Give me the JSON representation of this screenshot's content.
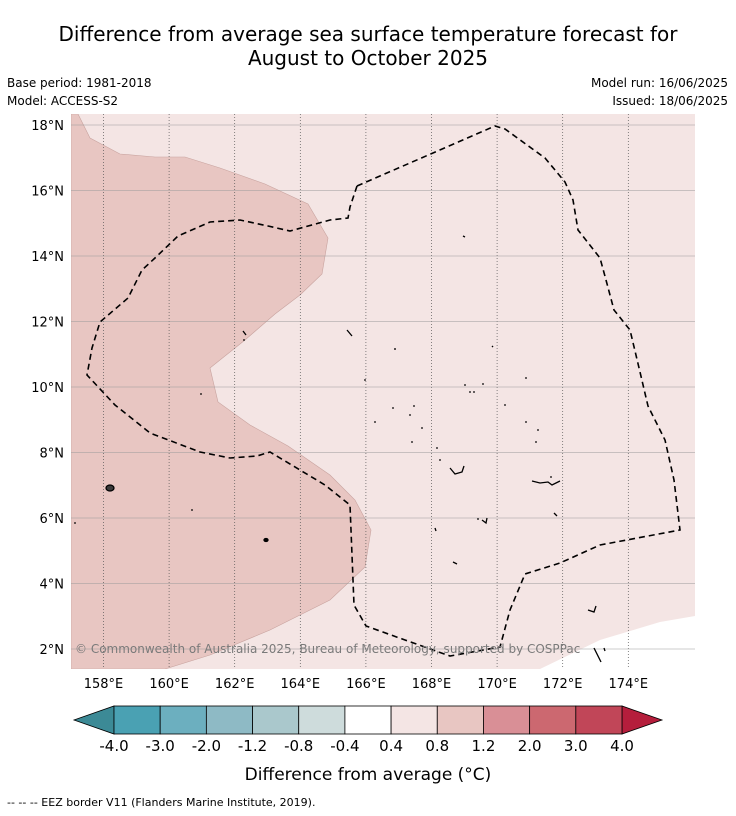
{
  "title_line1": "Difference from average sea surface temperature forecast for",
  "title_line2": "August to October 2025",
  "meta": {
    "base_period": "Base period: 1981-2018",
    "model": "Model: ACCESS-S2",
    "model_run": "Model run: 16/06/2025",
    "issued": "Issued: 18/06/2025"
  },
  "map": {
    "lon_labels": [
      "158°E",
      "160°E",
      "162°E",
      "164°E",
      "166°E",
      "168°E",
      "170°E",
      "172°E",
      "174°E"
    ],
    "lat_labels": [
      "2°N",
      "4°N",
      "6°N",
      "8°N",
      "10°N",
      "12°N",
      "14°N",
      "16°N",
      "18°N"
    ],
    "lon_values": [
      158,
      160,
      162,
      164,
      166,
      168,
      170,
      172,
      174
    ],
    "lat_values": [
      2,
      4,
      6,
      8,
      10,
      12,
      14,
      16,
      18
    ],
    "lon_range": [
      157,
      176
    ],
    "lat_range": [
      1.4,
      18.3
    ],
    "copyright": "© Commonwealth of Australia 2025, Bureau of Meteorology, supported by COSPPac",
    "fill_colors": {
      "band_0.4_to_0.8": "#f4e5e4",
      "band_0.8_to_1.2": "#e8c6c2",
      "no_change": "#ffffff"
    }
  },
  "colorbar": {
    "tick_labels": [
      "-4.0",
      "-3.0",
      "-2.0",
      "-1.2",
      "-0.8",
      "-0.4",
      "0.4",
      "0.8",
      "1.2",
      "2.0",
      "3.0",
      "4.0"
    ],
    "colors": [
      "#4aa1b3",
      "#6cafbf",
      "#8ebac5",
      "#aac8cc",
      "#cedcdc",
      "#ffffff",
      "#f4e5e4",
      "#e8c6c2",
      "#d98f96",
      "#cc6870",
      "#c14658"
    ],
    "under_color": "#3c8a96",
    "over_color": "#b51e3c",
    "label": "Difference from average (°C)"
  },
  "footnote": "--  --  -- EEZ border V11 (Flanders Marine Institute, 2019)."
}
